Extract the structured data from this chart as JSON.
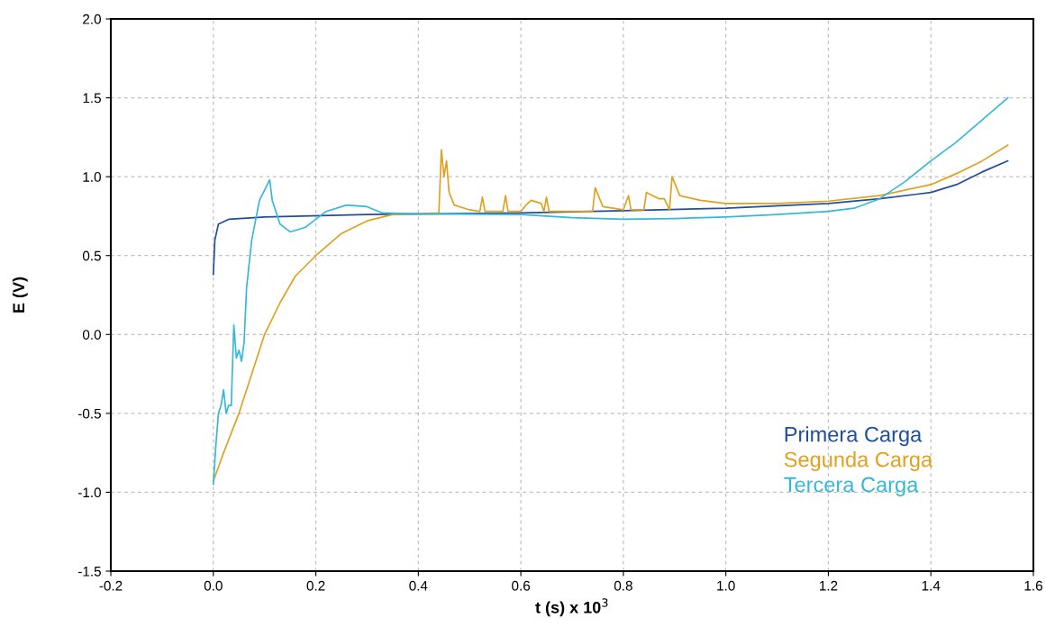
{
  "chart_data": {
    "type": "line",
    "xlabel": "t (s) x 10$^{3}$",
    "ylabel": "E (V)",
    "xlim": [
      -0.2,
      1.6
    ],
    "ylim": [
      -1.5,
      2.0
    ],
    "xticks": [
      {
        "value": -0.2,
        "label": "-0.2"
      },
      {
        "value": 0.0,
        "label": "0.0"
      },
      {
        "value": 0.2,
        "label": "0.2"
      },
      {
        "value": 0.4,
        "label": "0.4"
      },
      {
        "value": 0.6,
        "label": "0.6"
      },
      {
        "value": 0.8,
        "label": "0.8"
      },
      {
        "value": 1.0,
        "label": "1.0"
      },
      {
        "value": 1.2,
        "label": "1.2"
      },
      {
        "value": 1.4,
        "label": "1.4"
      },
      {
        "value": 1.6,
        "label": "1.6"
      }
    ],
    "yticks": [
      {
        "value": -1.5,
        "label": "-1.5"
      },
      {
        "value": -1.0,
        "label": "-1.0"
      },
      {
        "value": -0.5,
        "label": "-0.5"
      },
      {
        "value": 0.0,
        "label": "0.0"
      },
      {
        "value": 0.5,
        "label": "0.5"
      },
      {
        "value": 1.0,
        "label": "1.0"
      },
      {
        "value": 1.5,
        "label": "1.5"
      },
      {
        "value": 2.0,
        "label": "2.0"
      }
    ],
    "grid": true,
    "legend": "bottom right",
    "line_style": "solid",
    "series": [
      {
        "name": "Primera Carga",
        "color": "#1f4e9c",
        "x": [
          0,
          0.003,
          0.01,
          0.03,
          0.1,
          0.3,
          0.6,
          0.8,
          1.0,
          1.2,
          1.3,
          1.4,
          1.45,
          1.5,
          1.55
        ],
        "values": [
          0.38,
          0.6,
          0.7,
          0.73,
          0.745,
          0.76,
          0.77,
          0.785,
          0.8,
          0.83,
          0.86,
          0.9,
          0.95,
          1.03,
          1.1
        ]
      },
      {
        "name": "Segunda Carga",
        "color": "#e0a020",
        "x": [
          0,
          0.02,
          0.05,
          0.08,
          0.1,
          0.13,
          0.16,
          0.2,
          0.25,
          0.3,
          0.35,
          0.44,
          0.445,
          0.45,
          0.455,
          0.46,
          0.47,
          0.5,
          0.52,
          0.525,
          0.53,
          0.565,
          0.57,
          0.575,
          0.6,
          0.61,
          0.62,
          0.64,
          0.645,
          0.65,
          0.655,
          0.74,
          0.745,
          0.76,
          0.8,
          0.81,
          0.815,
          0.84,
          0.845,
          0.87,
          0.88,
          0.89,
          0.895,
          0.91,
          0.95,
          1.0,
          1.1,
          1.2,
          1.3,
          1.4,
          1.45,
          1.5,
          1.55
        ],
        "values": [
          -0.93,
          -0.75,
          -0.5,
          -0.2,
          0.0,
          0.2,
          0.37,
          0.5,
          0.64,
          0.72,
          0.76,
          0.77,
          1.17,
          1.0,
          1.1,
          0.9,
          0.82,
          0.79,
          0.78,
          0.87,
          0.78,
          0.78,
          0.88,
          0.78,
          0.78,
          0.82,
          0.85,
          0.83,
          0.78,
          0.87,
          0.78,
          0.78,
          0.93,
          0.81,
          0.79,
          0.88,
          0.79,
          0.79,
          0.9,
          0.86,
          0.86,
          0.79,
          1.0,
          0.88,
          0.85,
          0.83,
          0.83,
          0.845,
          0.88,
          0.95,
          1.02,
          1.1,
          1.2
        ]
      },
      {
        "name": "Tercera Carga",
        "color": "#35b8d8",
        "x": [
          0,
          0.005,
          0.01,
          0.015,
          0.02,
          0.025,
          0.03,
          0.035,
          0.04,
          0.045,
          0.05,
          0.055,
          0.06,
          0.065,
          0.075,
          0.09,
          0.11,
          0.115,
          0.13,
          0.15,
          0.18,
          0.22,
          0.26,
          0.3,
          0.33,
          0.4,
          0.6,
          0.7,
          0.8,
          0.9,
          1.0,
          1.1,
          1.2,
          1.25,
          1.3,
          1.35,
          1.4,
          1.45,
          1.5,
          1.55
        ],
        "values": [
          -0.95,
          -0.7,
          -0.5,
          -0.45,
          -0.35,
          -0.5,
          -0.45,
          -0.45,
          0.06,
          -0.15,
          -0.1,
          -0.17,
          -0.05,
          0.3,
          0.6,
          0.85,
          0.98,
          0.85,
          0.7,
          0.65,
          0.68,
          0.78,
          0.82,
          0.81,
          0.77,
          0.765,
          0.76,
          0.74,
          0.73,
          0.735,
          0.745,
          0.76,
          0.78,
          0.8,
          0.86,
          0.97,
          1.1,
          1.22,
          1.36,
          1.5
        ]
      }
    ]
  }
}
